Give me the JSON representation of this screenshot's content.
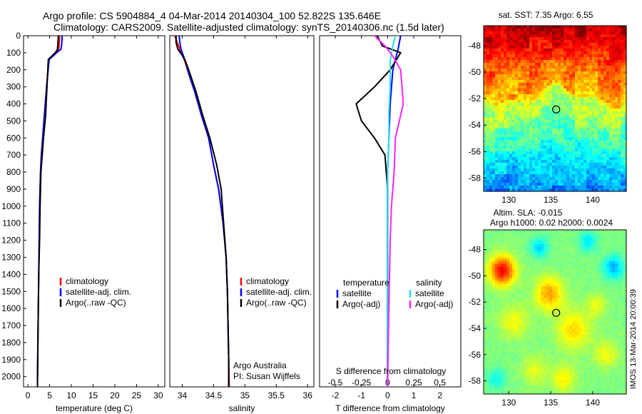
{
  "header": {
    "line1": "Argo profile: CS 5904884_4 04-Mar-2014 20140304_100 52.822S 135.646E",
    "line2": "Climatology: CARS2009. Satellite-adjusted climatology: synTS_20140306.nc (1.5d later)"
  },
  "colors": {
    "climatology": "#ff0000",
    "satellite": "#0000ff",
    "argo": "#000000",
    "salinity_satellite": "#22e0f0",
    "salinity_argo": "#ff22ff"
  },
  "depth_axis": {
    "ticks": [
      0,
      100,
      200,
      300,
      400,
      500,
      600,
      700,
      800,
      900,
      1000,
      1100,
      1200,
      1300,
      1400,
      1500,
      1600,
      1700,
      1800,
      1900,
      2000
    ],
    "max": 2060
  },
  "chart_data": [
    {
      "type": "line",
      "name": "temperature",
      "xlabel": "temperature (deg C)",
      "xlim": [
        -1,
        31.5
      ],
      "xticks": [
        0,
        5,
        10,
        15,
        20,
        25,
        30
      ],
      "ylim": [
        2060,
        0
      ],
      "legend": {
        "placement": "center",
        "entries": [
          "climatology",
          "satellite-adj. clim.",
          "Argo(..raw -QC)"
        ]
      },
      "series": [
        {
          "name": "climatology",
          "color": "#ff0000",
          "x": [
            7.3,
            7.2,
            7.1,
            6.5,
            4.8,
            4.3,
            4.0,
            3.7,
            3.4,
            3.1,
            2.9,
            2.7,
            2.6,
            2.5,
            2.4,
            2.3,
            2.2
          ],
          "y": [
            0,
            50,
            80,
            100,
            140,
            300,
            400,
            500,
            600,
            700,
            800,
            1000,
            1200,
            1400,
            1600,
            1800,
            2060
          ]
        },
        {
          "name": "satellite-adj. clim.",
          "color": "#0000ff",
          "x": [
            7.9,
            7.8,
            7.6,
            6.6,
            4.9,
            4.3,
            4.0,
            3.7,
            3.4,
            3.1,
            2.9,
            2.7,
            2.6,
            2.5,
            2.4,
            2.3,
            2.2
          ],
          "y": [
            0,
            50,
            80,
            100,
            140,
            300,
            400,
            500,
            600,
            700,
            800,
            1000,
            1200,
            1400,
            1600,
            1800,
            2060
          ]
        },
        {
          "name": "Argo(..raw -QC)",
          "color": "#000000",
          "x": [
            7.0,
            6.9,
            6.8,
            6.3,
            4.7,
            4.4,
            4.2,
            4.1,
            3.6,
            3.3,
            3.0,
            2.8,
            2.7,
            2.5,
            2.4,
            2.3,
            2.2
          ],
          "y": [
            0,
            50,
            80,
            100,
            140,
            300,
            400,
            460,
            600,
            700,
            800,
            1000,
            1200,
            1400,
            1600,
            1800,
            2060
          ]
        }
      ]
    },
    {
      "type": "line",
      "name": "salinity",
      "xlabel": "salinity",
      "xlim": [
        33.8,
        36.1
      ],
      "xticks": [
        34,
        34.5,
        35,
        35.5,
        36
      ],
      "xtick_labels": [
        "34",
        "34.5",
        "35",
        "35.5",
        "36"
      ],
      "ylim": [
        2060,
        0
      ],
      "legend": {
        "placement": "center",
        "entries": [
          "climatology",
          "satellite-adj. clim.",
          "Argo(..raw -QC)"
        ]
      },
      "annotation": [
        "Argo Australia",
        "PI: Susan Wijffels"
      ],
      "series": [
        {
          "name": "climatology",
          "color": "#ff0000",
          "x": [
            33.88,
            33.92,
            33.96,
            34.0,
            34.04,
            34.1,
            34.2,
            34.3,
            34.42,
            34.5,
            34.58,
            34.65,
            34.7,
            34.72,
            34.73,
            34.74,
            34.75
          ],
          "y": [
            0,
            40,
            80,
            110,
            150,
            220,
            330,
            460,
            600,
            760,
            900,
            1100,
            1300,
            1500,
            1700,
            1900,
            2060
          ]
        },
        {
          "name": "satellite-adj. clim.",
          "color": "#0000ff",
          "x": [
            33.95,
            33.96,
            33.98,
            34.01,
            34.05,
            34.1,
            34.2,
            34.3,
            34.42,
            34.5,
            34.58,
            34.65,
            34.7,
            34.72,
            34.73,
            34.74,
            34.74
          ],
          "y": [
            0,
            40,
            80,
            110,
            150,
            220,
            330,
            460,
            600,
            760,
            900,
            1100,
            1300,
            1500,
            1700,
            1900,
            2060
          ]
        },
        {
          "name": "Argo(..raw -QC)",
          "color": "#000000",
          "x": [
            33.9,
            33.9,
            33.93,
            33.99,
            34.05,
            34.12,
            34.22,
            34.32,
            34.44,
            34.55,
            34.62,
            34.66,
            34.7,
            34.72,
            34.73,
            34.74,
            34.74
          ],
          "y": [
            0,
            40,
            80,
            110,
            150,
            220,
            330,
            460,
            600,
            760,
            900,
            1100,
            1300,
            1500,
            1700,
            1900,
            2060
          ]
        }
      ]
    },
    {
      "type": "line",
      "name": "differences",
      "xlabel": "T difference from climatology",
      "xlabel_top": "S difference from climatology",
      "xlim": [
        -2.6,
        2.8
      ],
      "xticks": [
        -2,
        -1,
        0,
        1,
        2
      ],
      "xtick_labels": [
        "-2",
        "-1",
        "0",
        "1",
        "2"
      ],
      "sticks": [
        -0.5,
        -0.25,
        0,
        0.25,
        0.5
      ],
      "stick_labels": [
        "-0.5",
        "-0.25",
        "0",
        "0.25",
        "0.5"
      ],
      "ylim": [
        2060,
        0
      ],
      "legend": {
        "placement": "center",
        "temperature_title": "temperature",
        "salinity_title": "salinity",
        "entries": [
          "satellite",
          "Argo(-adj)",
          "satellite",
          "Argo(-adj)"
        ]
      },
      "series": [
        {
          "name": "temperature satellite",
          "color": "#0000ff",
          "x": [
            0.5,
            0.4,
            0.2,
            0.1,
            0.05,
            0.0,
            0.0,
            0.0,
            0.0,
            0.0
          ],
          "y": [
            0,
            80,
            200,
            400,
            600,
            800,
            1000,
            1400,
            1800,
            2060
          ]
        },
        {
          "name": "temperature Argo(-adj)",
          "color": "#000000",
          "x": [
            -0.4,
            -0.2,
            0.5,
            0.1,
            -0.5,
            -1.2,
            -1.0,
            -0.5,
            -0.1,
            0.0,
            0.0,
            0.0,
            0.0
          ],
          "y": [
            0,
            60,
            100,
            200,
            300,
            400,
            500,
            600,
            700,
            900,
            1200,
            1600,
            2060
          ]
        },
        {
          "name": "salinity satellite",
          "color": "#22e0f0",
          "x": [
            0.3,
            0.2,
            0.1,
            0.1,
            0.05,
            0.05,
            0.0,
            0.0,
            0.0,
            0.0
          ],
          "y": [
            0,
            60,
            150,
            300,
            450,
            600,
            800,
            1200,
            1600,
            2060
          ]
        },
        {
          "name": "salinity Argo(-adj)",
          "color": "#ff22ff",
          "x": [
            -0.5,
            -0.1,
            0.2,
            0.5,
            0.6,
            0.3,
            0.25,
            0.15,
            0.1,
            0.05,
            0.0
          ],
          "y": [
            0,
            60,
            120,
            200,
            400,
            600,
            800,
            1000,
            1200,
            1600,
            2060
          ]
        }
      ]
    },
    {
      "type": "heatmap",
      "name": "sst_map",
      "title": "sat. SST: 7.35 Argo: 6.55",
      "xlim": [
        127,
        144
      ],
      "ylim": [
        -59,
        -46.5
      ],
      "xticks": [
        130,
        135,
        140
      ],
      "yticks": [
        -48,
        -50,
        -52,
        -54,
        -56,
        -58
      ],
      "marker": {
        "lon": 135.646,
        "lat": -52.822
      }
    },
    {
      "type": "heatmap",
      "name": "sla_map",
      "title_line1": "Altim. SLA: -0.015",
      "title_line2": "Argo h1000: 0.02 h2000: 0.0024",
      "xlim": [
        127,
        144
      ],
      "ylim": [
        -59,
        -46.5
      ],
      "xticks": [
        130,
        135,
        140
      ],
      "yticks": [
        -48,
        -50,
        -52,
        -54,
        -56,
        -58
      ],
      "marker": {
        "lon": 135.646,
        "lat": -52.822
      }
    }
  ],
  "footer": {
    "stamp": "IMOS 13-Mar-2014 20:00:39"
  }
}
